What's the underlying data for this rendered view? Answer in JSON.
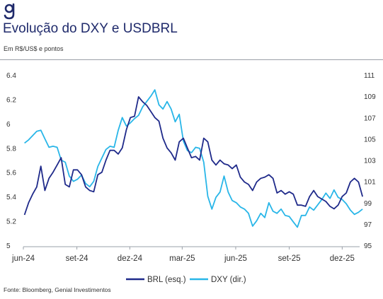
{
  "header": {
    "title": "Evolução do DXY e USDBRL",
    "subtitle": "Em R$/US$ e pontos"
  },
  "footer": {
    "source": "Fonte: Bloomberg, Genial Investimentos"
  },
  "colors": {
    "brand": "#1f2a6b",
    "brl": "#1f2a8a",
    "dxy": "#29b6e8"
  },
  "chart_data": {
    "type": "line",
    "x_ticks": [
      "jun-24",
      "set-24",
      "dez-24",
      "mar-25",
      "jun-25",
      "set-25",
      "dez-25"
    ],
    "x_domain": [
      "2024-06-01",
      "2025-12-31"
    ],
    "y_left": {
      "ticks": [
        "5",
        "5.2",
        "5.4",
        "5.6",
        "5.8",
        "6",
        "6.2",
        "6.4"
      ],
      "lim": [
        5.0,
        6.4
      ]
    },
    "y_right": {
      "ticks": [
        "95",
        "97",
        "99",
        "101",
        "103",
        "105",
        "107",
        "109",
        "111"
      ],
      "lim": [
        95,
        111
      ]
    },
    "grid": false,
    "legend_position": "bottom-center",
    "series": [
      {
        "name": "BRL (esq.)",
        "axis": "left",
        "points": [
          [
            "2024-06-03",
            5.25
          ],
          [
            "2024-06-10",
            5.35
          ],
          [
            "2024-06-17",
            5.42
          ],
          [
            "2024-06-24",
            5.48
          ],
          [
            "2024-07-01",
            5.65
          ],
          [
            "2024-07-08",
            5.45
          ],
          [
            "2024-07-15",
            5.55
          ],
          [
            "2024-07-22",
            5.6
          ],
          [
            "2024-07-29",
            5.66
          ],
          [
            "2024-08-05",
            5.72
          ],
          [
            "2024-08-12",
            5.5
          ],
          [
            "2024-08-19",
            5.48
          ],
          [
            "2024-08-26",
            5.62
          ],
          [
            "2024-09-02",
            5.62
          ],
          [
            "2024-09-09",
            5.58
          ],
          [
            "2024-09-16",
            5.48
          ],
          [
            "2024-09-23",
            5.45
          ],
          [
            "2024-09-30",
            5.44
          ],
          [
            "2024-10-07",
            5.58
          ],
          [
            "2024-10-14",
            5.6
          ],
          [
            "2024-10-21",
            5.7
          ],
          [
            "2024-10-28",
            5.78
          ],
          [
            "2024-11-04",
            5.78
          ],
          [
            "2024-11-11",
            5.75
          ],
          [
            "2024-11-18",
            5.8
          ],
          [
            "2024-11-25",
            5.95
          ],
          [
            "2024-12-02",
            6.05
          ],
          [
            "2024-12-09",
            6.06
          ],
          [
            "2024-12-16",
            6.22
          ],
          [
            "2024-12-23",
            6.18
          ],
          [
            "2024-12-30",
            6.15
          ],
          [
            "2025-01-06",
            6.1
          ],
          [
            "2025-01-13",
            6.05
          ],
          [
            "2025-01-20",
            6.02
          ],
          [
            "2025-01-27",
            5.88
          ],
          [
            "2025-02-03",
            5.8
          ],
          [
            "2025-02-10",
            5.76
          ],
          [
            "2025-02-17",
            5.7
          ],
          [
            "2025-02-24",
            5.85
          ],
          [
            "2025-03-03",
            5.88
          ],
          [
            "2025-03-10",
            5.8
          ],
          [
            "2025-03-17",
            5.72
          ],
          [
            "2025-03-24",
            5.73
          ],
          [
            "2025-03-31",
            5.7
          ],
          [
            "2025-04-07",
            5.88
          ],
          [
            "2025-04-14",
            5.85
          ],
          [
            "2025-04-21",
            5.7
          ],
          [
            "2025-04-28",
            5.66
          ],
          [
            "2025-05-05",
            5.7
          ],
          [
            "2025-05-12",
            5.67
          ],
          [
            "2025-05-19",
            5.66
          ],
          [
            "2025-05-26",
            5.63
          ],
          [
            "2025-06-02",
            5.66
          ],
          [
            "2025-06-09",
            5.56
          ],
          [
            "2025-06-16",
            5.52
          ],
          [
            "2025-06-23",
            5.5
          ],
          [
            "2025-06-30",
            5.45
          ],
          [
            "2025-07-07",
            5.52
          ],
          [
            "2025-07-14",
            5.55
          ],
          [
            "2025-07-21",
            5.56
          ],
          [
            "2025-07-28",
            5.58
          ],
          [
            "2025-08-04",
            5.55
          ],
          [
            "2025-08-11",
            5.43
          ],
          [
            "2025-08-18",
            5.45
          ],
          [
            "2025-08-25",
            5.42
          ],
          [
            "2025-09-01",
            5.44
          ],
          [
            "2025-09-08",
            5.42
          ],
          [
            "2025-09-15",
            5.33
          ],
          [
            "2025-09-22",
            5.33
          ],
          [
            "2025-09-29",
            5.32
          ],
          [
            "2025-10-06",
            5.4
          ],
          [
            "2025-10-13",
            5.45
          ],
          [
            "2025-10-20",
            5.4
          ],
          [
            "2025-10-27",
            5.38
          ],
          [
            "2025-11-03",
            5.36
          ],
          [
            "2025-11-10",
            5.32
          ],
          [
            "2025-11-17",
            5.3
          ],
          [
            "2025-11-24",
            5.33
          ],
          [
            "2025-12-01",
            5.4
          ],
          [
            "2025-12-08",
            5.43
          ],
          [
            "2025-12-15",
            5.52
          ],
          [
            "2025-12-22",
            5.55
          ],
          [
            "2025-12-29",
            5.52
          ],
          [
            "2026-01-05",
            5.4
          ]
        ]
      },
      {
        "name": "DXY (dir.)",
        "axis": "right",
        "points": [
          [
            "2024-06-03",
            104.6
          ],
          [
            "2024-06-10",
            104.9
          ],
          [
            "2024-06-17",
            105.3
          ],
          [
            "2024-06-24",
            105.7
          ],
          [
            "2024-07-01",
            105.8
          ],
          [
            "2024-07-08",
            105.0
          ],
          [
            "2024-07-15",
            104.2
          ],
          [
            "2024-07-22",
            104.3
          ],
          [
            "2024-07-29",
            104.2
          ],
          [
            "2024-08-05",
            103.0
          ],
          [
            "2024-08-12",
            102.8
          ],
          [
            "2024-08-19",
            101.5
          ],
          [
            "2024-08-26",
            101.0
          ],
          [
            "2024-09-02",
            101.2
          ],
          [
            "2024-09-09",
            101.6
          ],
          [
            "2024-09-16",
            100.8
          ],
          [
            "2024-09-23",
            100.5
          ],
          [
            "2024-09-30",
            101.0
          ],
          [
            "2024-10-07",
            102.4
          ],
          [
            "2024-10-14",
            103.2
          ],
          [
            "2024-10-21",
            104.0
          ],
          [
            "2024-10-28",
            104.3
          ],
          [
            "2024-11-04",
            104.2
          ],
          [
            "2024-11-11",
            105.8
          ],
          [
            "2024-11-18",
            107.0
          ],
          [
            "2024-11-25",
            106.2
          ],
          [
            "2024-12-02",
            106.5
          ],
          [
            "2024-12-09",
            106.9
          ],
          [
            "2024-12-16",
            107.2
          ],
          [
            "2024-12-23",
            108.0
          ],
          [
            "2024-12-30",
            108.5
          ],
          [
            "2025-01-06",
            109.0
          ],
          [
            "2025-01-13",
            109.6
          ],
          [
            "2025-01-20",
            108.2
          ],
          [
            "2025-01-27",
            107.8
          ],
          [
            "2025-02-03",
            108.5
          ],
          [
            "2025-02-10",
            107.8
          ],
          [
            "2025-02-17",
            106.6
          ],
          [
            "2025-02-24",
            107.3
          ],
          [
            "2025-03-03",
            104.8
          ],
          [
            "2025-03-10",
            103.9
          ],
          [
            "2025-03-17",
            103.7
          ],
          [
            "2025-03-24",
            104.2
          ],
          [
            "2025-03-31",
            104.1
          ],
          [
            "2025-04-07",
            102.8
          ],
          [
            "2025-04-14",
            99.6
          ],
          [
            "2025-04-21",
            98.4
          ],
          [
            "2025-04-28",
            99.5
          ],
          [
            "2025-05-05",
            100.0
          ],
          [
            "2025-05-12",
            101.5
          ],
          [
            "2025-05-19",
            100.0
          ],
          [
            "2025-05-26",
            99.2
          ],
          [
            "2025-06-02",
            99.0
          ],
          [
            "2025-06-09",
            98.6
          ],
          [
            "2025-06-16",
            98.4
          ],
          [
            "2025-06-23",
            98.0
          ],
          [
            "2025-06-30",
            96.8
          ],
          [
            "2025-07-07",
            97.3
          ],
          [
            "2025-07-14",
            98.0
          ],
          [
            "2025-07-21",
            97.6
          ],
          [
            "2025-07-28",
            99.0
          ],
          [
            "2025-08-04",
            98.2
          ],
          [
            "2025-08-11",
            98.0
          ],
          [
            "2025-08-18",
            98.4
          ],
          [
            "2025-08-25",
            97.8
          ],
          [
            "2025-09-01",
            97.7
          ],
          [
            "2025-09-08",
            97.2
          ],
          [
            "2025-09-15",
            96.7
          ],
          [
            "2025-09-22",
            97.8
          ],
          [
            "2025-09-29",
            97.8
          ],
          [
            "2025-10-06",
            98.6
          ],
          [
            "2025-10-13",
            98.3
          ],
          [
            "2025-10-20",
            98.8
          ],
          [
            "2025-10-27",
            99.3
          ],
          [
            "2025-11-03",
            99.9
          ],
          [
            "2025-11-10",
            99.4
          ],
          [
            "2025-11-17",
            100.2
          ],
          [
            "2025-11-24",
            99.5
          ],
          [
            "2025-12-01",
            99.3
          ],
          [
            "2025-12-08",
            98.9
          ],
          [
            "2025-12-15",
            98.3
          ],
          [
            "2025-12-22",
            97.9
          ],
          [
            "2025-12-29",
            98.1
          ],
          [
            "2026-01-05",
            98.4
          ]
        ]
      }
    ]
  }
}
